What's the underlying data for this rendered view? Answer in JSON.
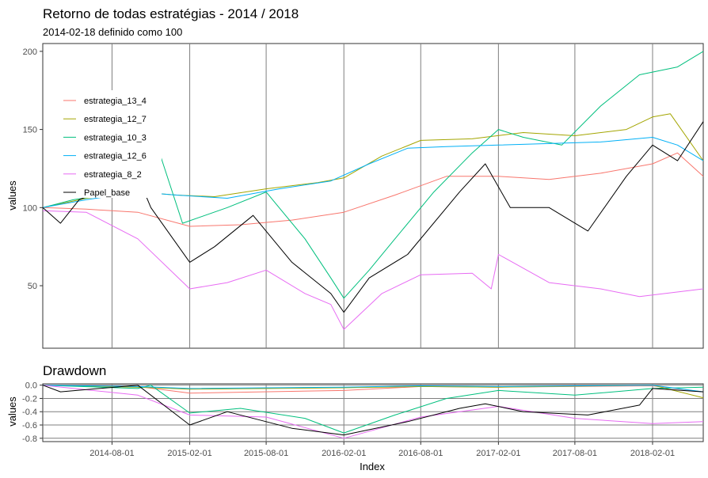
{
  "chart_data": [
    {
      "type": "line",
      "title": "Retorno de todas estratégias - 2014 / 2018",
      "subtitle": "2014-02-18 definido como 100",
      "xlabel": "",
      "ylabel": "values",
      "xlim": [
        "2014-02-18",
        "2018-06-01"
      ],
      "ylim": [
        10,
        205
      ],
      "y_ticks": [
        50,
        100,
        150,
        200
      ],
      "x_gridlines": [
        "2014-08-01",
        "2015-02-01",
        "2015-08-01",
        "2016-02-01",
        "2016-08-01",
        "2017-02-01",
        "2017-08-01",
        "2018-02-01"
      ],
      "legend_position": "top-left",
      "series": [
        {
          "name": "estrategia_13_4",
          "color": "#F8766D",
          "x": [
            "2014-02-18",
            "2014-06-01",
            "2014-10-01",
            "2015-02-01",
            "2015-06-01",
            "2015-10-01",
            "2016-02-01",
            "2016-06-01",
            "2016-10-01",
            "2017-02-01",
            "2017-06-01",
            "2017-10-01",
            "2018-02-01",
            "2018-04-01",
            "2018-06-01"
          ],
          "values": [
            100,
            99,
            97,
            88,
            89,
            92,
            97,
            108,
            120,
            120,
            118,
            122,
            128,
            135,
            120
          ]
        },
        {
          "name": "estrategia_12_7",
          "color": "#A3A500",
          "x": [
            "2014-02-18",
            "2014-06-01",
            "2014-10-01",
            "2015-01-01",
            "2015-04-01",
            "2015-08-01",
            "2015-12-01",
            "2016-02-01",
            "2016-05-01",
            "2016-08-01",
            "2016-12-01",
            "2017-04-01",
            "2017-08-01",
            "2017-12-01",
            "2018-02-01",
            "2018-03-15",
            "2018-06-01"
          ],
          "values": [
            100,
            106,
            110,
            108,
            107,
            112,
            116,
            119,
            133,
            143,
            144,
            148,
            146,
            150,
            158,
            160,
            130
          ]
        },
        {
          "name": "estrategia_10_3",
          "color": "#00BF7D",
          "x": [
            "2014-02-18",
            "2014-05-01",
            "2014-09-01",
            "2014-11-01",
            "2015-01-15",
            "2015-05-01",
            "2015-08-01",
            "2015-11-01",
            "2016-01-01",
            "2016-02-01",
            "2016-04-01",
            "2016-06-01",
            "2016-09-01",
            "2016-12-01",
            "2017-02-01",
            "2017-04-01",
            "2017-07-01",
            "2017-10-01",
            "2018-01-01",
            "2018-04-01",
            "2018-06-01"
          ],
          "values": [
            100,
            105,
            110,
            152,
            90,
            100,
            110,
            80,
            55,
            42,
            60,
            80,
            110,
            135,
            150,
            145,
            140,
            165,
            185,
            190,
            200
          ]
        },
        {
          "name": "estrategia_12_6",
          "color": "#00B0F6",
          "x": [
            "2014-02-18",
            "2014-06-01",
            "2014-10-01",
            "2015-01-01",
            "2015-05-01",
            "2015-09-01",
            "2016-01-01",
            "2016-04-01",
            "2016-07-01",
            "2016-10-01",
            "2017-02-01",
            "2017-06-01",
            "2017-10-01",
            "2018-02-01",
            "2018-04-01",
            "2018-06-01"
          ],
          "values": [
            100,
            105,
            110,
            108,
            106,
            112,
            117,
            128,
            138,
            139,
            140,
            141,
            142,
            145,
            140,
            130
          ]
        },
        {
          "name": "estrategia_8_2",
          "color": "#E76BF3",
          "x": [
            "2014-02-18",
            "2014-06-01",
            "2014-10-01",
            "2015-02-01",
            "2015-05-01",
            "2015-08-01",
            "2015-11-01",
            "2016-01-01",
            "2016-02-01",
            "2016-05-01",
            "2016-08-01",
            "2016-12-01",
            "2017-01-15",
            "2017-02-01",
            "2017-06-01",
            "2017-10-01",
            "2018-01-01",
            "2018-06-01"
          ],
          "values": [
            98,
            97,
            80,
            48,
            52,
            60,
            45,
            38,
            22,
            45,
            57,
            58,
            48,
            70,
            52,
            48,
            43,
            48
          ]
        },
        {
          "name": "Papel_base",
          "color": "#000000",
          "x": [
            "2014-02-18",
            "2014-04-01",
            "2014-05-15",
            "2014-10-01",
            "2014-11-01",
            "2015-02-01",
            "2015-04-01",
            "2015-07-01",
            "2015-10-01",
            "2016-01-01",
            "2016-02-01",
            "2016-04-01",
            "2016-07-01",
            "2016-11-01",
            "2017-01-01",
            "2017-03-01",
            "2017-06-01",
            "2017-09-01",
            "2017-12-01",
            "2018-02-01",
            "2018-04-01",
            "2018-06-01"
          ],
          "values": [
            100,
            90,
            105,
            120,
            100,
            65,
            75,
            95,
            65,
            45,
            33,
            55,
            70,
            110,
            128,
            100,
            100,
            85,
            120,
            140,
            130,
            155
          ]
        }
      ]
    },
    {
      "type": "line",
      "title": "Drawdown",
      "xlabel": "Index",
      "ylabel": "values",
      "xlim": [
        "2014-02-18",
        "2018-06-01"
      ],
      "ylim": [
        -0.85,
        0.02
      ],
      "y_ticks": [
        "0.0",
        "-0.2",
        "-0.4",
        "-0.6",
        "-0.8"
      ],
      "y_tick_values": [
        0,
        -0.2,
        -0.4,
        -0.6,
        -0.8
      ],
      "x_ticks": [
        "2014-08-01",
        "2015-02-01",
        "2015-08-01",
        "2016-02-01",
        "2016-08-01",
        "2017-02-01",
        "2017-08-01",
        "2018-02-01"
      ],
      "series": [
        {
          "name": "estrategia_13_4",
          "color": "#F8766D",
          "x": [
            "2014-02-18",
            "2014-10-01",
            "2015-02-01",
            "2016-02-01",
            "2016-08-01",
            "2017-02-01",
            "2018-02-01",
            "2018-06-01"
          ],
          "values": [
            0,
            -0.02,
            -0.12,
            -0.08,
            -0.02,
            -0.03,
            -0.01,
            -0.1
          ]
        },
        {
          "name": "estrategia_12_7",
          "color": "#A3A500",
          "x": [
            "2014-02-18",
            "2014-10-01",
            "2015-02-01",
            "2016-02-01",
            "2016-08-01",
            "2017-02-01",
            "2018-02-01",
            "2018-06-01"
          ],
          "values": [
            0,
            -0.03,
            -0.06,
            -0.04,
            -0.02,
            -0.03,
            0,
            -0.19
          ]
        },
        {
          "name": "estrategia_10_3",
          "color": "#00BF7D",
          "x": [
            "2014-02-18",
            "2014-10-01",
            "2014-11-01",
            "2015-02-01",
            "2015-06-01",
            "2015-11-01",
            "2016-02-01",
            "2016-06-01",
            "2016-10-01",
            "2017-02-01",
            "2017-08-01",
            "2018-02-01",
            "2018-06-01"
          ],
          "values": [
            0,
            -0.05,
            0,
            -0.42,
            -0.35,
            -0.5,
            -0.72,
            -0.45,
            -0.2,
            -0.08,
            -0.15,
            -0.05,
            -0.03
          ]
        },
        {
          "name": "estrategia_12_6",
          "color": "#00B0F6",
          "x": [
            "2014-02-18",
            "2014-10-01",
            "2015-02-01",
            "2016-02-01",
            "2016-08-01",
            "2017-02-01",
            "2018-02-01",
            "2018-06-01"
          ],
          "values": [
            0,
            -0.02,
            -0.05,
            -0.03,
            -0.01,
            -0.02,
            0,
            -0.1
          ]
        },
        {
          "name": "estrategia_8_2",
          "color": "#E76BF3",
          "x": [
            "2014-02-18",
            "2014-10-01",
            "2015-02-01",
            "2015-08-01",
            "2016-02-01",
            "2016-08-01",
            "2017-02-01",
            "2017-08-01",
            "2018-02-01",
            "2018-06-01"
          ],
          "values": [
            0,
            -0.15,
            -0.45,
            -0.48,
            -0.8,
            -0.48,
            -0.32,
            -0.5,
            -0.58,
            -0.55
          ]
        },
        {
          "name": "Papel_base",
          "color": "#000000",
          "x": [
            "2014-02-18",
            "2014-04-01",
            "2014-10-01",
            "2015-02-01",
            "2015-05-01",
            "2015-10-01",
            "2016-02-01",
            "2016-07-01",
            "2016-11-01",
            "2017-01-01",
            "2017-04-01",
            "2017-09-01",
            "2018-01-01",
            "2018-02-01",
            "2018-06-01"
          ],
          "values": [
            0,
            -0.1,
            0,
            -0.6,
            -0.4,
            -0.65,
            -0.75,
            -0.55,
            -0.35,
            -0.28,
            -0.4,
            -0.45,
            -0.3,
            -0.05,
            -0.1
          ]
        }
      ]
    }
  ]
}
